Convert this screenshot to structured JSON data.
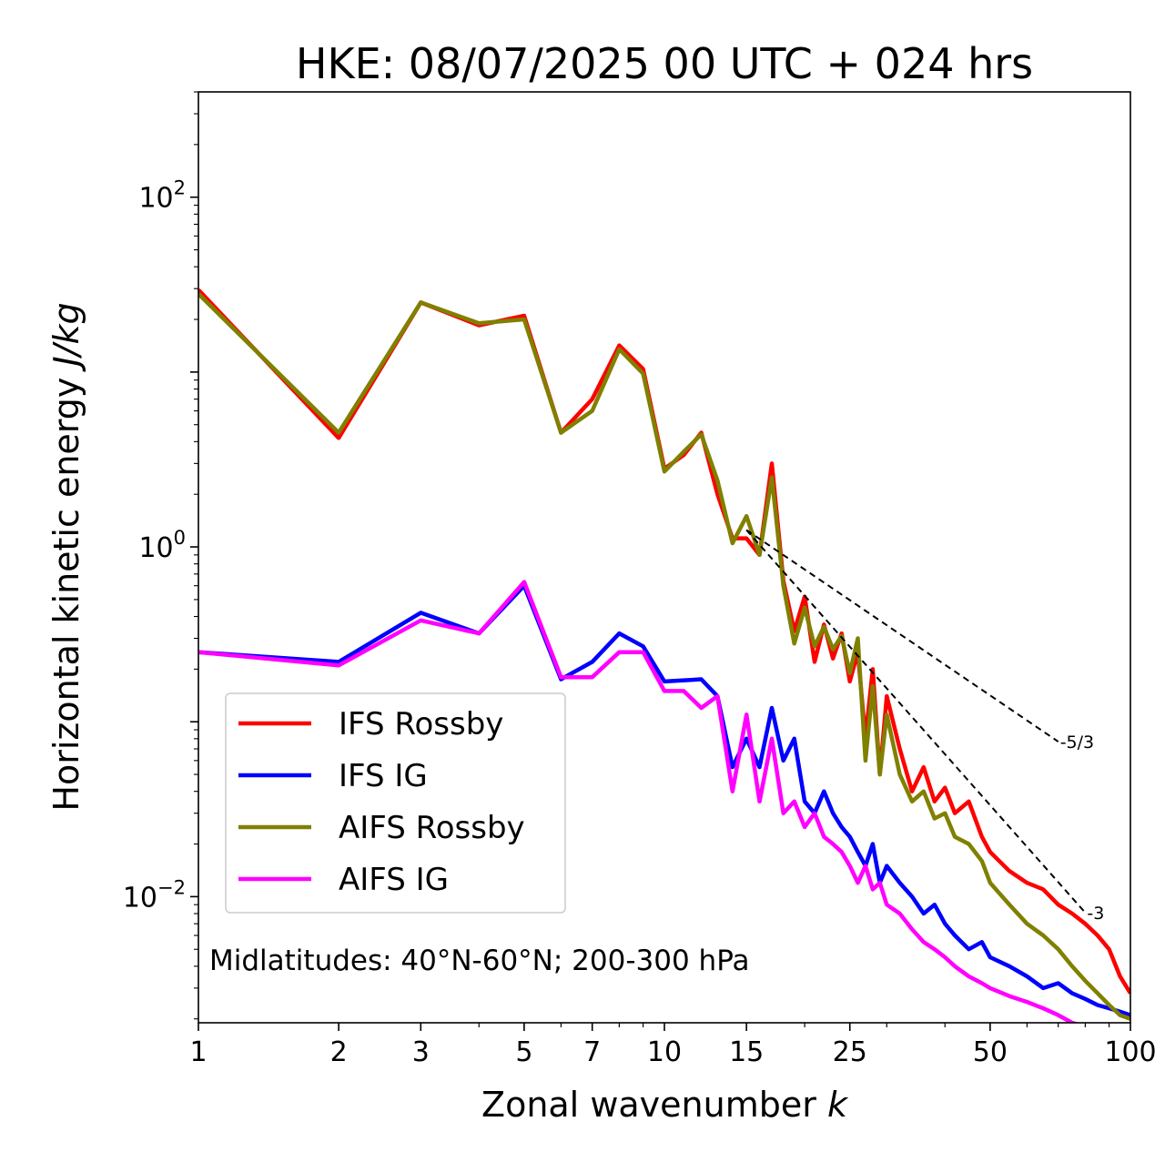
{
  "chart_data": {
    "type": "line",
    "title": "HKE: 08/07/2025 00 UTC + 024 hrs",
    "xlabel": "Zonal wavenumber ",
    "xlabel_italic": "k",
    "ylabel": "Horizontal kinetic energy ",
    "ylabel_italic": "J/kg",
    "x_scale": "log",
    "y_scale": "log",
    "xlim": [
      1,
      100
    ],
    "ylim": [
      0.0019,
      400
    ],
    "x_ticks": [
      1,
      2,
      3,
      5,
      7,
      10,
      15,
      25,
      50,
      100
    ],
    "x_tick_labels": [
      "1",
      "2",
      "3",
      "5",
      "7",
      "10",
      "15",
      "25",
      "50",
      "100"
    ],
    "y_ticks": [
      {
        "value": 100,
        "base": "10",
        "exp": "2"
      },
      {
        "value": 1,
        "base": "10",
        "exp": "0"
      },
      {
        "value": 0.01,
        "base": "10",
        "exp": "−2"
      }
    ],
    "grid": false,
    "legend_position": "lower-left",
    "annotation": "Midlatitudes: 40°N-60°N; 200-300 hPa",
    "reference_lines": [
      {
        "label": "-5/3",
        "x": [
          15,
          70
        ],
        "y": [
          1.25,
          0.077
        ]
      },
      {
        "label": "-3",
        "x": [
          15,
          80
        ],
        "y": [
          1.25,
          0.0081
        ]
      }
    ],
    "series": [
      {
        "name": "IFS Rossby",
        "color": "#ff0000",
        "x": [
          1,
          2,
          3,
          4,
          5,
          6,
          7,
          8,
          9,
          10,
          11,
          12,
          13,
          14,
          15,
          16,
          17,
          18,
          19,
          20,
          21,
          22,
          23,
          24,
          25,
          26,
          27,
          28,
          29,
          30,
          32,
          34,
          36,
          38,
          40,
          42,
          45,
          48,
          50,
          55,
          60,
          65,
          70,
          75,
          80,
          85,
          90,
          95,
          100
        ],
        "y": [
          29.5,
          4.2,
          25,
          18.5,
          21,
          4.5,
          7,
          14.2,
          10.4,
          2.8,
          3.35,
          4.5,
          2.0,
          1.12,
          1.12,
          0.9,
          3.0,
          0.64,
          0.33,
          0.52,
          0.22,
          0.36,
          0.23,
          0.32,
          0.17,
          0.25,
          0.08,
          0.2,
          0.05,
          0.14,
          0.07,
          0.04,
          0.055,
          0.035,
          0.042,
          0.03,
          0.035,
          0.022,
          0.018,
          0.014,
          0.012,
          0.011,
          0.009,
          0.008,
          0.007,
          0.006,
          0.005,
          0.0035,
          0.0028
        ]
      },
      {
        "name": "IFS IG",
        "color": "#0000ff",
        "x": [
          1,
          2,
          3,
          4,
          5,
          6,
          7,
          8,
          9,
          10,
          12,
          13,
          14,
          15,
          16,
          17,
          18,
          19,
          20,
          21,
          22,
          23,
          24,
          25,
          26,
          27,
          28,
          29,
          30,
          32,
          34,
          36,
          38,
          40,
          42,
          45,
          48,
          50,
          55,
          60,
          65,
          70,
          75,
          80,
          85,
          90,
          95,
          100
        ],
        "y": [
          0.25,
          0.22,
          0.42,
          0.32,
          0.6,
          0.175,
          0.22,
          0.32,
          0.27,
          0.17,
          0.175,
          0.14,
          0.055,
          0.08,
          0.055,
          0.12,
          0.06,
          0.08,
          0.035,
          0.03,
          0.04,
          0.03,
          0.025,
          0.022,
          0.018,
          0.015,
          0.02,
          0.012,
          0.015,
          0.012,
          0.01,
          0.008,
          0.009,
          0.007,
          0.006,
          0.005,
          0.0055,
          0.0045,
          0.004,
          0.0035,
          0.003,
          0.0032,
          0.0028,
          0.0026,
          0.0024,
          0.0023,
          0.0022,
          0.0021
        ]
      },
      {
        "name": "AIFS Rossby",
        "color": "#808000",
        "x": [
          1,
          2,
          3,
          4,
          5,
          6,
          7,
          8,
          9,
          10,
          11,
          12,
          13,
          14,
          15,
          16,
          17,
          18,
          19,
          20,
          21,
          22,
          23,
          24,
          25,
          26,
          27,
          28,
          29,
          30,
          32,
          34,
          36,
          38,
          40,
          42,
          45,
          48,
          50,
          55,
          60,
          65,
          70,
          75,
          80,
          85,
          90,
          95,
          100
        ],
        "y": [
          28,
          4.5,
          25,
          19,
          20,
          4.5,
          6,
          13.5,
          9.8,
          2.7,
          3.5,
          4.4,
          2.4,
          1.05,
          1.5,
          0.9,
          2.5,
          0.6,
          0.28,
          0.45,
          0.27,
          0.35,
          0.26,
          0.31,
          0.19,
          0.3,
          0.06,
          0.16,
          0.05,
          0.11,
          0.05,
          0.035,
          0.04,
          0.028,
          0.03,
          0.022,
          0.02,
          0.016,
          0.012,
          0.009,
          0.007,
          0.006,
          0.005,
          0.004,
          0.0033,
          0.0028,
          0.0024,
          0.0021,
          0.002
        ]
      },
      {
        "name": "AIFS IG",
        "color": "#ff00ff",
        "x": [
          1,
          2,
          3,
          4,
          5,
          6,
          7,
          8,
          9,
          10,
          11,
          12,
          13,
          14,
          15,
          16,
          17,
          18,
          19,
          20,
          21,
          22,
          23,
          24,
          25,
          26,
          27,
          28,
          29,
          30,
          32,
          34,
          36,
          38,
          40,
          42,
          45,
          48,
          50,
          55,
          60,
          65,
          70,
          75,
          80,
          85,
          90,
          95,
          100
        ],
        "y": [
          0.25,
          0.21,
          0.38,
          0.32,
          0.63,
          0.18,
          0.18,
          0.25,
          0.25,
          0.15,
          0.15,
          0.12,
          0.14,
          0.04,
          0.11,
          0.035,
          0.08,
          0.03,
          0.035,
          0.025,
          0.03,
          0.022,
          0.02,
          0.018,
          0.015,
          0.012,
          0.015,
          0.011,
          0.012,
          0.009,
          0.008,
          0.0065,
          0.0055,
          0.005,
          0.0045,
          0.004,
          0.0035,
          0.0032,
          0.003,
          0.0027,
          0.0025,
          0.0023,
          0.0021,
          0.0019,
          0.0018,
          0.0017,
          0.0016,
          0.0015,
          0.0015
        ]
      }
    ]
  }
}
